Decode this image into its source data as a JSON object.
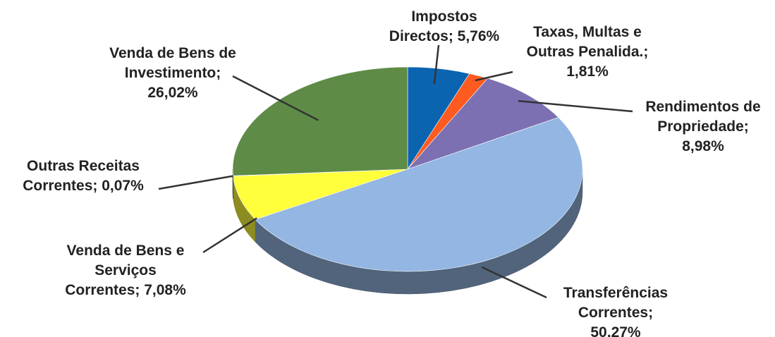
{
  "chart_data": {
    "type": "pie3d",
    "values": [
      5.76,
      1.81,
      8.98,
      50.27,
      7.08,
      0.07,
      26.02
    ],
    "value_labels": [
      "Impostos\nDirectos; 5,76%",
      "Taxas, Multas e\nOutras Penalida.;\n1,81%",
      "Rendimentos de\nPropriedade;\n8,98%",
      "Transferências\nCorrentes;\n50,27%",
      "Venda de Bens e\nServiços\nCorrentes; 7,08%",
      "Outras Receitas\nCorrentes; 0,07%",
      "Venda de Bens de\nInvestimento;\n26,02%"
    ],
    "colors": [
      "#0b64b0",
      "#ff5a1f",
      "#7d70b2",
      "#93b6e2",
      "#ffff3c",
      "#f6f260",
      "#5e8b46"
    ]
  }
}
